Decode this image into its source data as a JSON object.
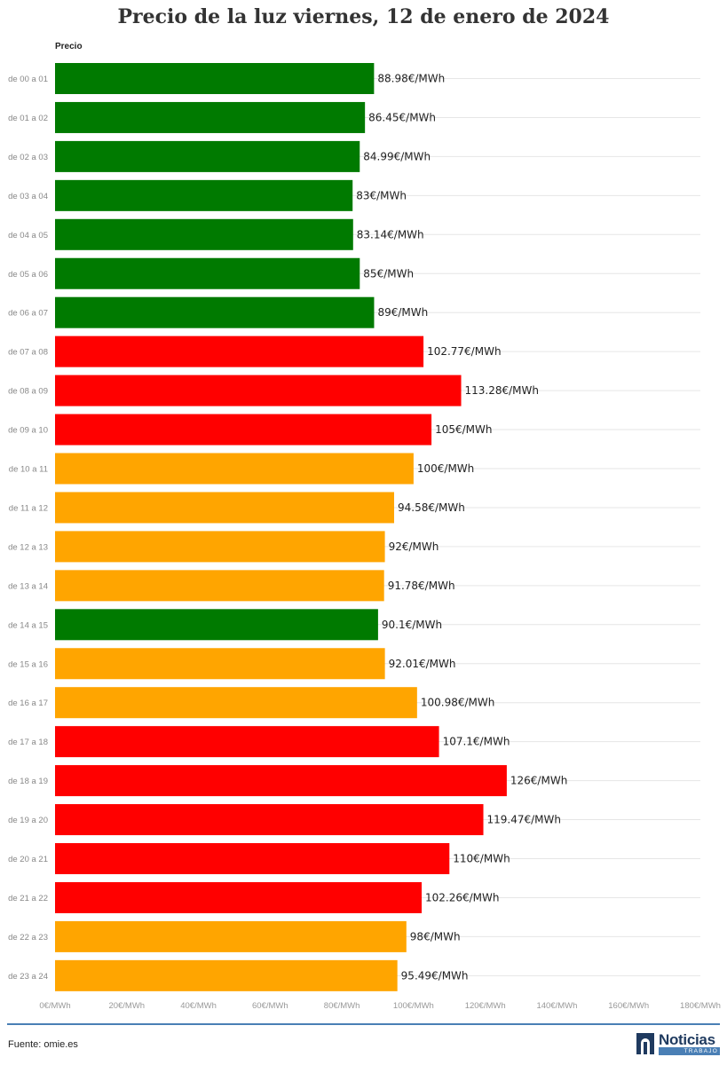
{
  "title": "Precio de la luz viernes, 12 de enero de 2024",
  "series_label": "Precio",
  "source": "Fuente: omie.es",
  "logo": {
    "name": "Noticias",
    "sub": "TRABAJO"
  },
  "colors": {
    "low": "#007a00",
    "mid": "#ffa500",
    "high": "#ff0000",
    "grid": "#e6e6e6",
    "rule": "#4a7fb5"
  },
  "chart_data": {
    "type": "bar",
    "orientation": "horizontal",
    "title": "Precio de la luz viernes, 12 de enero de 2024",
    "categories": [
      "de 00 a 01",
      "de 01 a 02",
      "de 02 a 03",
      "de 03 a 04",
      "de 04 a 05",
      "de 05 a 06",
      "de 06 a 07",
      "de 07 a 08",
      "de 08 a 09",
      "de 09 a 10",
      "de 10 a 11",
      "de 11 a 12",
      "de 12 a 13",
      "de 13 a 14",
      "de 14 a 15",
      "de 15 a 16",
      "de 16 a 17",
      "de 17 a 18",
      "de 18 a 19",
      "de 19 a 20",
      "de 20 a 21",
      "de 21 a 22",
      "de 22 a 23",
      "de 23 a 24"
    ],
    "series": [
      {
        "name": "Precio",
        "values": [
          88.98,
          86.45,
          84.99,
          83,
          83.14,
          85,
          89,
          102.77,
          113.28,
          105,
          100,
          94.58,
          92,
          91.78,
          90.1,
          92.01,
          100.98,
          107.1,
          126,
          119.47,
          110,
          102.26,
          98,
          95.49
        ],
        "labels": [
          "88.98€/MWh",
          "86.45€/MWh",
          "84.99€/MWh",
          "83€/MWh",
          "83.14€/MWh",
          "85€/MWh",
          "89€/MWh",
          "102.77€/MWh",
          "113.28€/MWh",
          "105€/MWh",
          "100€/MWh",
          "94.58€/MWh",
          "92€/MWh",
          "91.78€/MWh",
          "90.1€/MWh",
          "92.01€/MWh",
          "100.98€/MWh",
          "107.1€/MWh",
          "126€/MWh",
          "119.47€/MWh",
          "110€/MWh",
          "102.26€/MWh",
          "98€/MWh",
          "95.49€/MWh"
        ],
        "levels": [
          "low",
          "low",
          "low",
          "low",
          "low",
          "low",
          "low",
          "high",
          "high",
          "high",
          "mid",
          "mid",
          "mid",
          "mid",
          "low",
          "mid",
          "mid",
          "high",
          "high",
          "high",
          "high",
          "high",
          "mid",
          "mid"
        ]
      }
    ],
    "xlim": [
      0,
      180
    ],
    "xticks": [
      0,
      20,
      40,
      60,
      80,
      100,
      120,
      140,
      160,
      180
    ],
    "xtick_labels": [
      "0€/MWh",
      "20€/MWh",
      "40€/MWh",
      "60€/MWh",
      "80€/MWh",
      "100€/MWh",
      "120€/MWh",
      "140€/MWh",
      "160€/MWh",
      "180€/MWh"
    ],
    "grid": true,
    "legend": false
  }
}
